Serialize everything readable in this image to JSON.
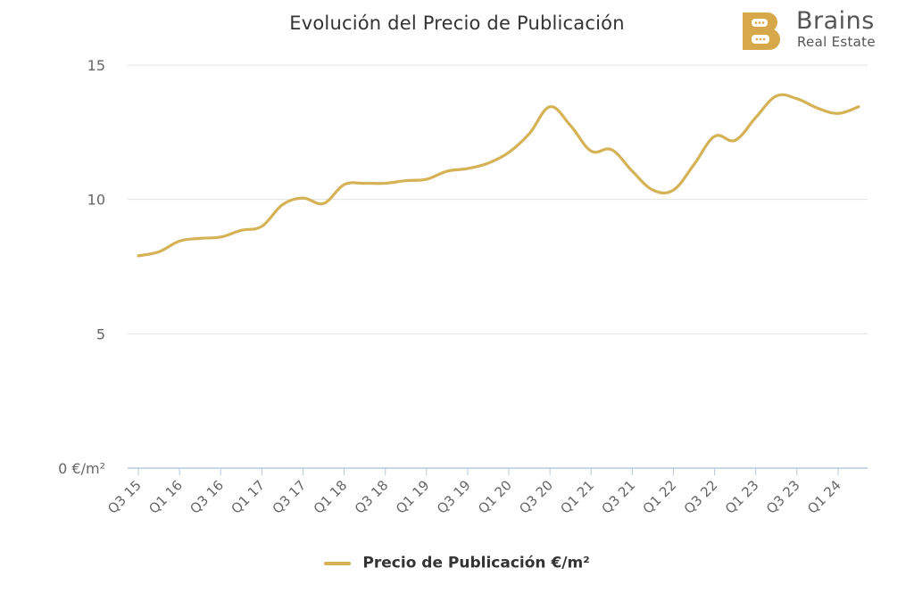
{
  "chart_data": {
    "type": "line",
    "title": "Evolución del Precio de Publicación",
    "xlabel": "",
    "ylabel": "",
    "ylim": [
      0,
      15
    ],
    "yticks": [
      {
        "value": 0,
        "label": "0 €/m²"
      },
      {
        "value": 5,
        "label": "5"
      },
      {
        "value": 10,
        "label": "10"
      },
      {
        "value": 15,
        "label": "15"
      }
    ],
    "x_tick_labels": [
      "Q3 15",
      "Q1 16",
      "Q3 16",
      "Q1 17",
      "Q3 17",
      "Q1 18",
      "Q3 18",
      "Q1 19",
      "Q3 19",
      "Q1 20",
      "Q3 20",
      "Q1 21",
      "Q3 21",
      "Q1 22",
      "Q3 22",
      "Q1 23",
      "Q3 23",
      "Q1 24"
    ],
    "x": [
      "Q3 15",
      "Q4 15",
      "Q1 16",
      "Q2 16",
      "Q3 16",
      "Q4 16",
      "Q1 17",
      "Q2 17",
      "Q3 17",
      "Q4 17",
      "Q1 18",
      "Q2 18",
      "Q3 18",
      "Q4 18",
      "Q1 19",
      "Q2 19",
      "Q3 19",
      "Q4 19",
      "Q1 20",
      "Q2 20",
      "Q3 20",
      "Q4 20",
      "Q1 21",
      "Q2 21",
      "Q3 21",
      "Q4 21",
      "Q1 22",
      "Q2 22",
      "Q3 22",
      "Q4 22",
      "Q1 23",
      "Q2 23",
      "Q3 23",
      "Q4 23",
      "Q1 24",
      "Q2 24"
    ],
    "series": [
      {
        "name": "Precio de Publicación €/m²",
        "color": "#d6b256",
        "values": [
          7.9,
          8.05,
          8.45,
          8.55,
          8.6,
          8.85,
          9.0,
          9.8,
          10.05,
          9.85,
          10.55,
          10.6,
          10.6,
          10.7,
          10.75,
          11.05,
          11.15,
          11.35,
          11.75,
          12.45,
          13.45,
          12.75,
          11.8,
          11.85,
          11.05,
          10.35,
          10.35,
          11.3,
          12.35,
          12.2,
          13.05,
          13.85,
          13.75,
          13.4,
          13.2,
          13.45
        ]
      }
    ],
    "grid": true,
    "legend_position": "bottom-center"
  },
  "logo": {
    "brand": "Brains",
    "tagline": "Real Estate",
    "color": "#d6a84a"
  }
}
